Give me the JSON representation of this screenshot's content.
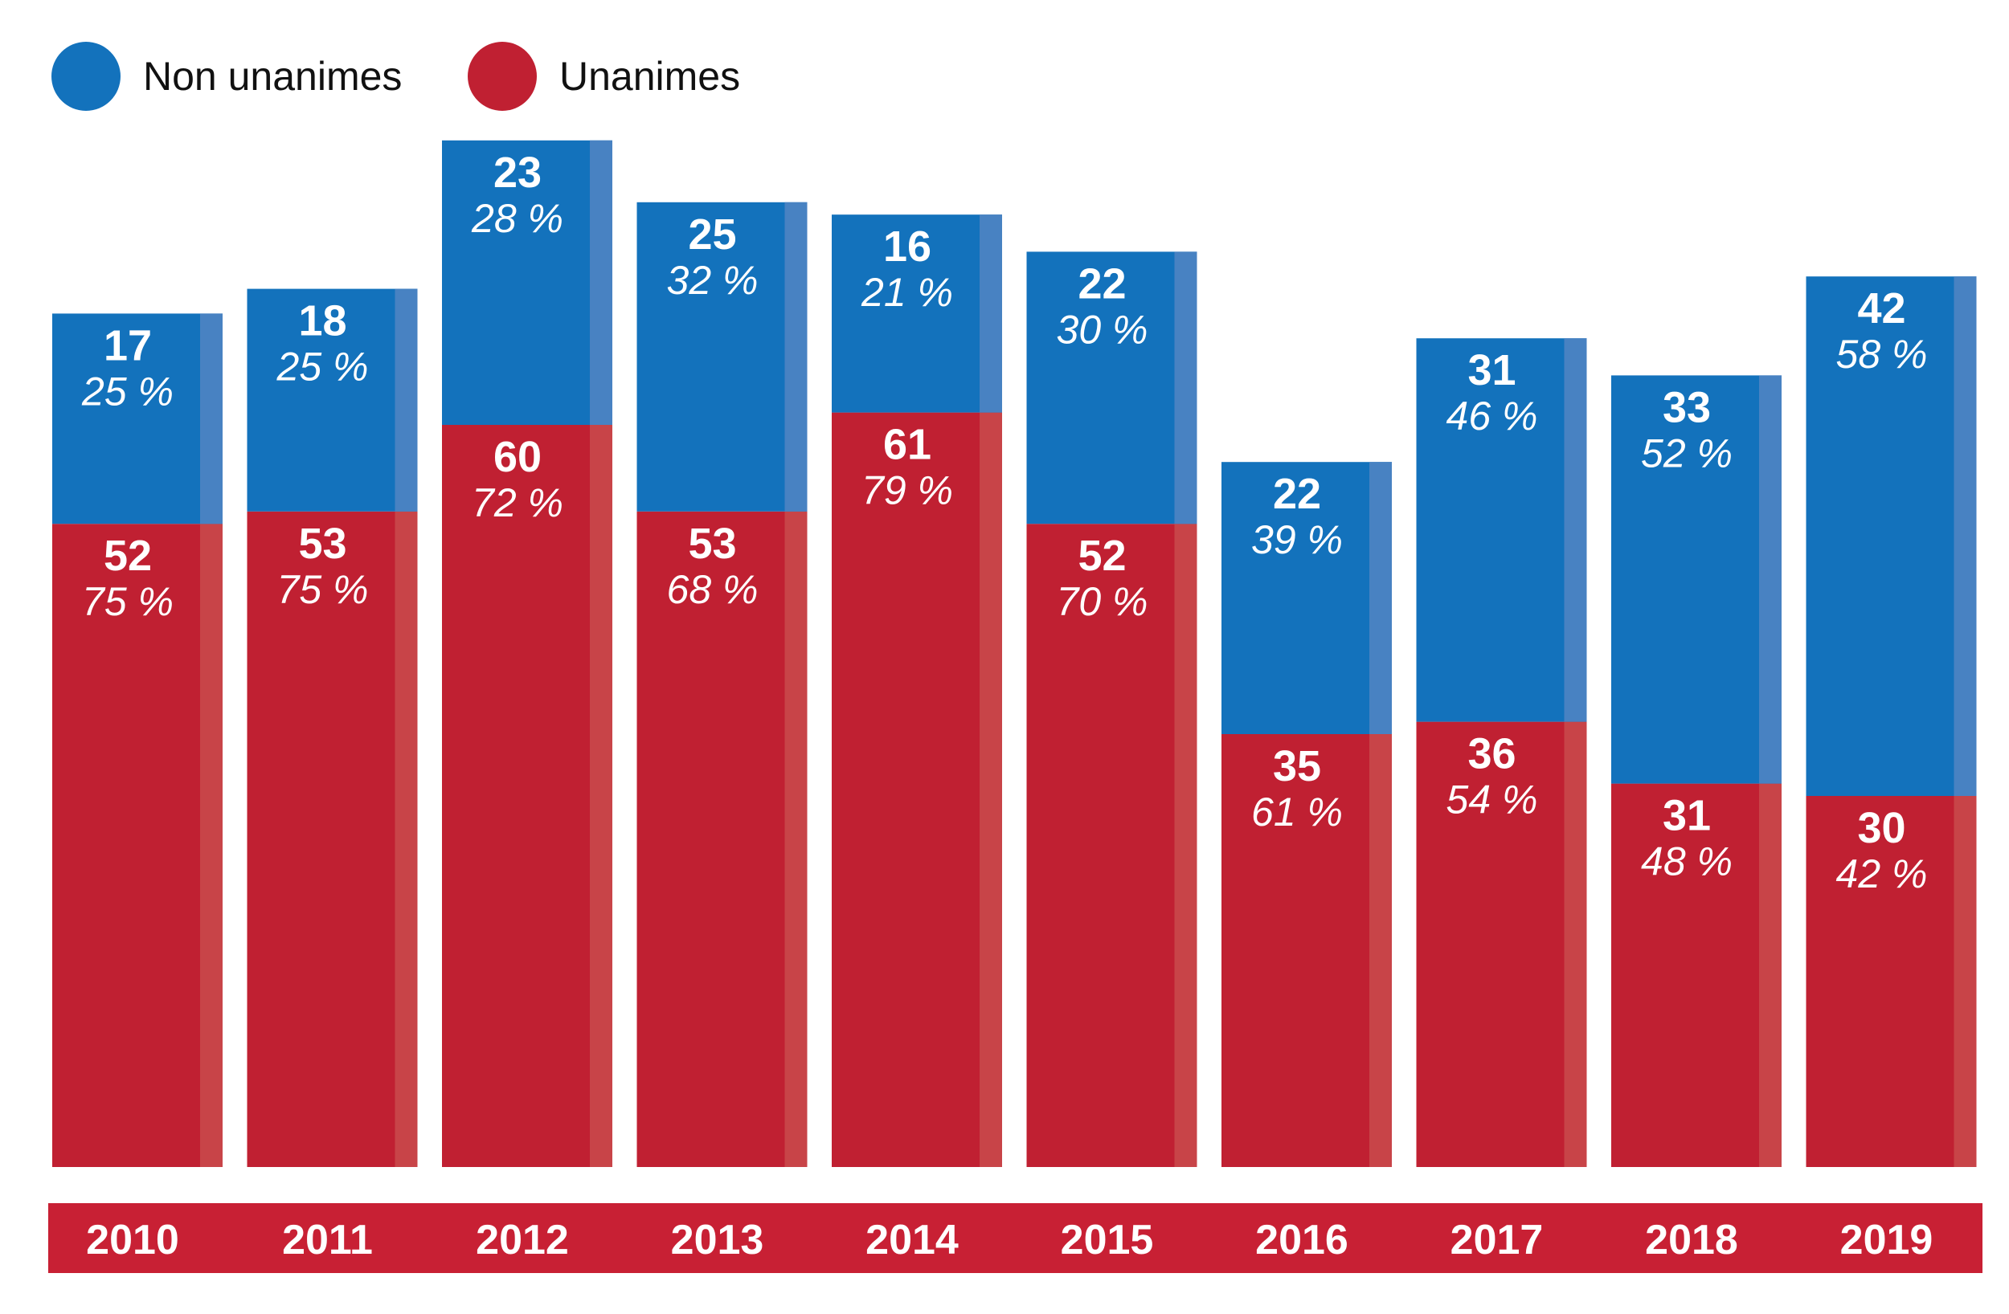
{
  "legend": {
    "non_unanimes": "Non unanimes",
    "unanimes": "Unanimes"
  },
  "colors": {
    "non_unanimes": "#1372bc",
    "non_unanimes_edge": "#4882c2",
    "unanimes": "#c02032",
    "unanimes_edge": "#c84448",
    "year_band": "#c82034"
  },
  "chart_data": {
    "type": "bar",
    "stacked": true,
    "categories": [
      "2010",
      "2011",
      "2012",
      "2013",
      "2014",
      "2015",
      "2016",
      "2017",
      "2018",
      "2019"
    ],
    "series": [
      {
        "name": "Unanimes",
        "values": [
          52,
          53,
          60,
          53,
          61,
          52,
          35,
          36,
          31,
          30
        ],
        "labels": [
          "75 %",
          "75 %",
          "72 %",
          "68 %",
          "79 %",
          "70 %",
          "61 %",
          "54 %",
          "48 %",
          "42 %"
        ]
      },
      {
        "name": "Non unanimes",
        "values": [
          17,
          18,
          23,
          25,
          16,
          22,
          22,
          31,
          33,
          42
        ],
        "labels": [
          "25 %",
          "25 %",
          "28 %",
          "32 %",
          "21 %",
          "30 %",
          "39 %",
          "46 %",
          "52 %",
          "58 %"
        ]
      }
    ],
    "legend_position": "top-left",
    "grid": false
  }
}
